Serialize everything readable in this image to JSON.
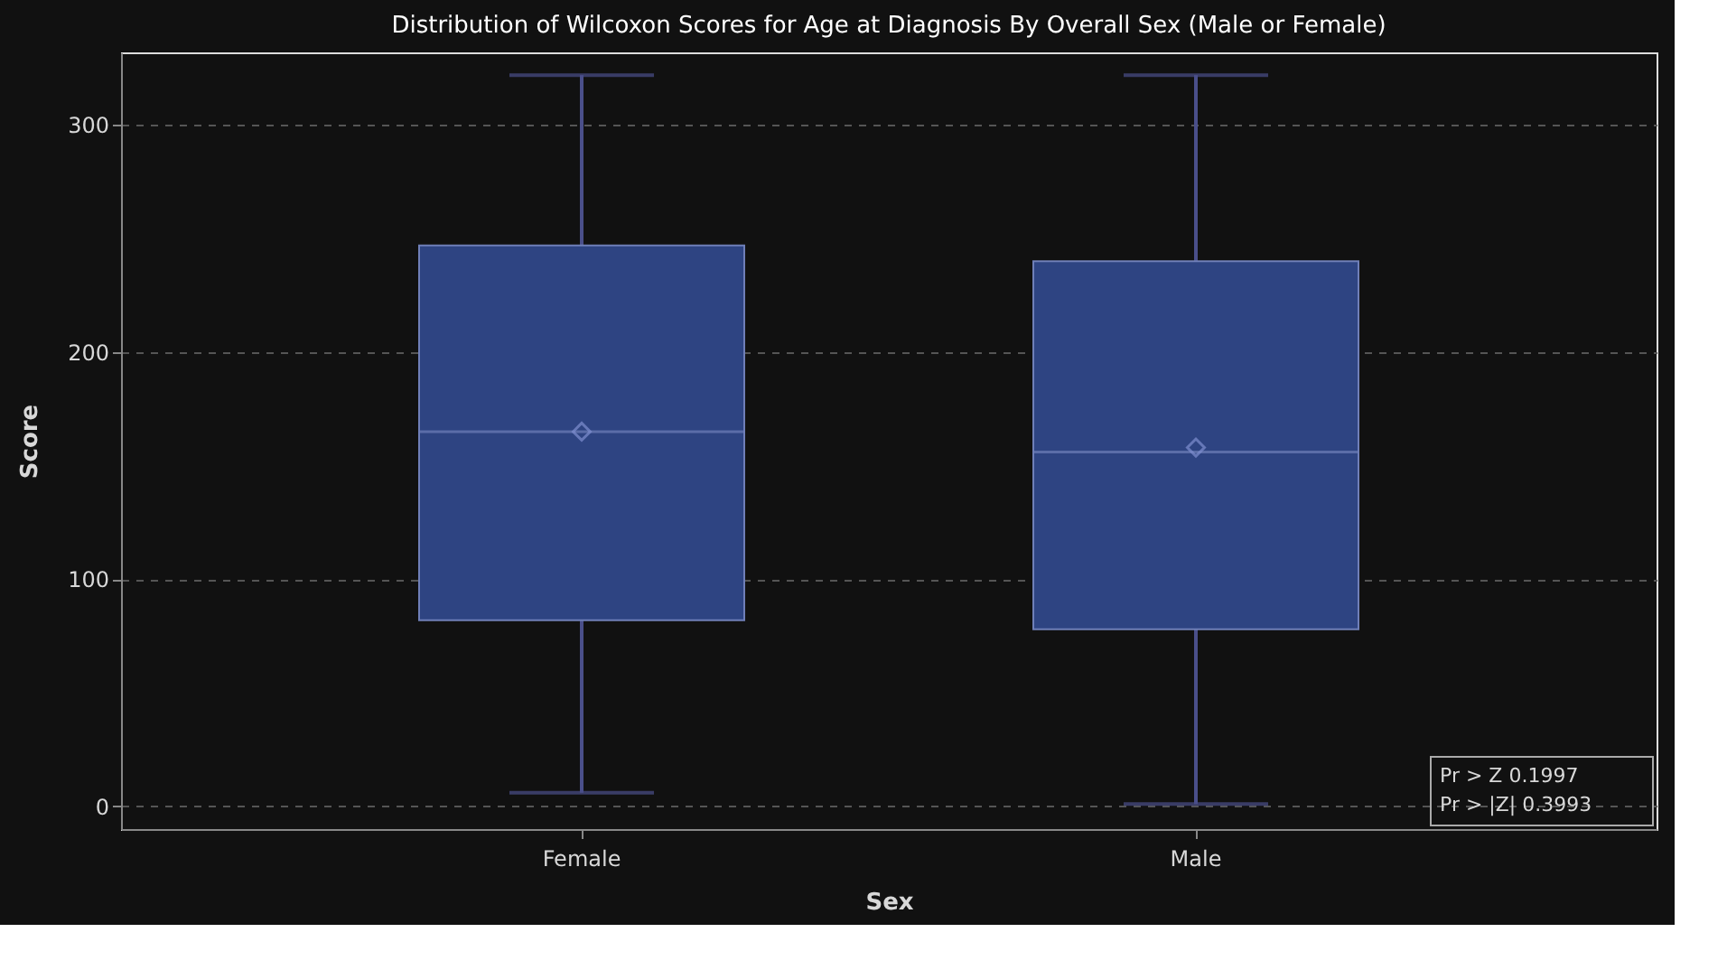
{
  "chart_data": {
    "type": "box",
    "title": "Distribution of Wilcoxon Scores for Age at Diagnosis By Overall Sex (Male or Female)",
    "xlabel": "Sex",
    "ylabel": "Score",
    "categories": [
      "Female",
      "Male"
    ],
    "boxes": [
      {
        "low": 6,
        "q1": 82,
        "median": 165,
        "q3": 247,
        "high": 322,
        "mean": 165
      },
      {
        "low": 1,
        "q1": 78,
        "median": 156,
        "q3": 240,
        "high": 322,
        "mean": 158
      }
    ],
    "color": "#2e4482",
    "ylim": [
      -10,
      332
    ],
    "yticks": [
      0,
      100,
      200,
      300
    ],
    "grid": "y",
    "marker": "diamond",
    "annotations": [
      "Pr > Z      0.1997",
      "Pr > |Z|   0.3993"
    ]
  }
}
